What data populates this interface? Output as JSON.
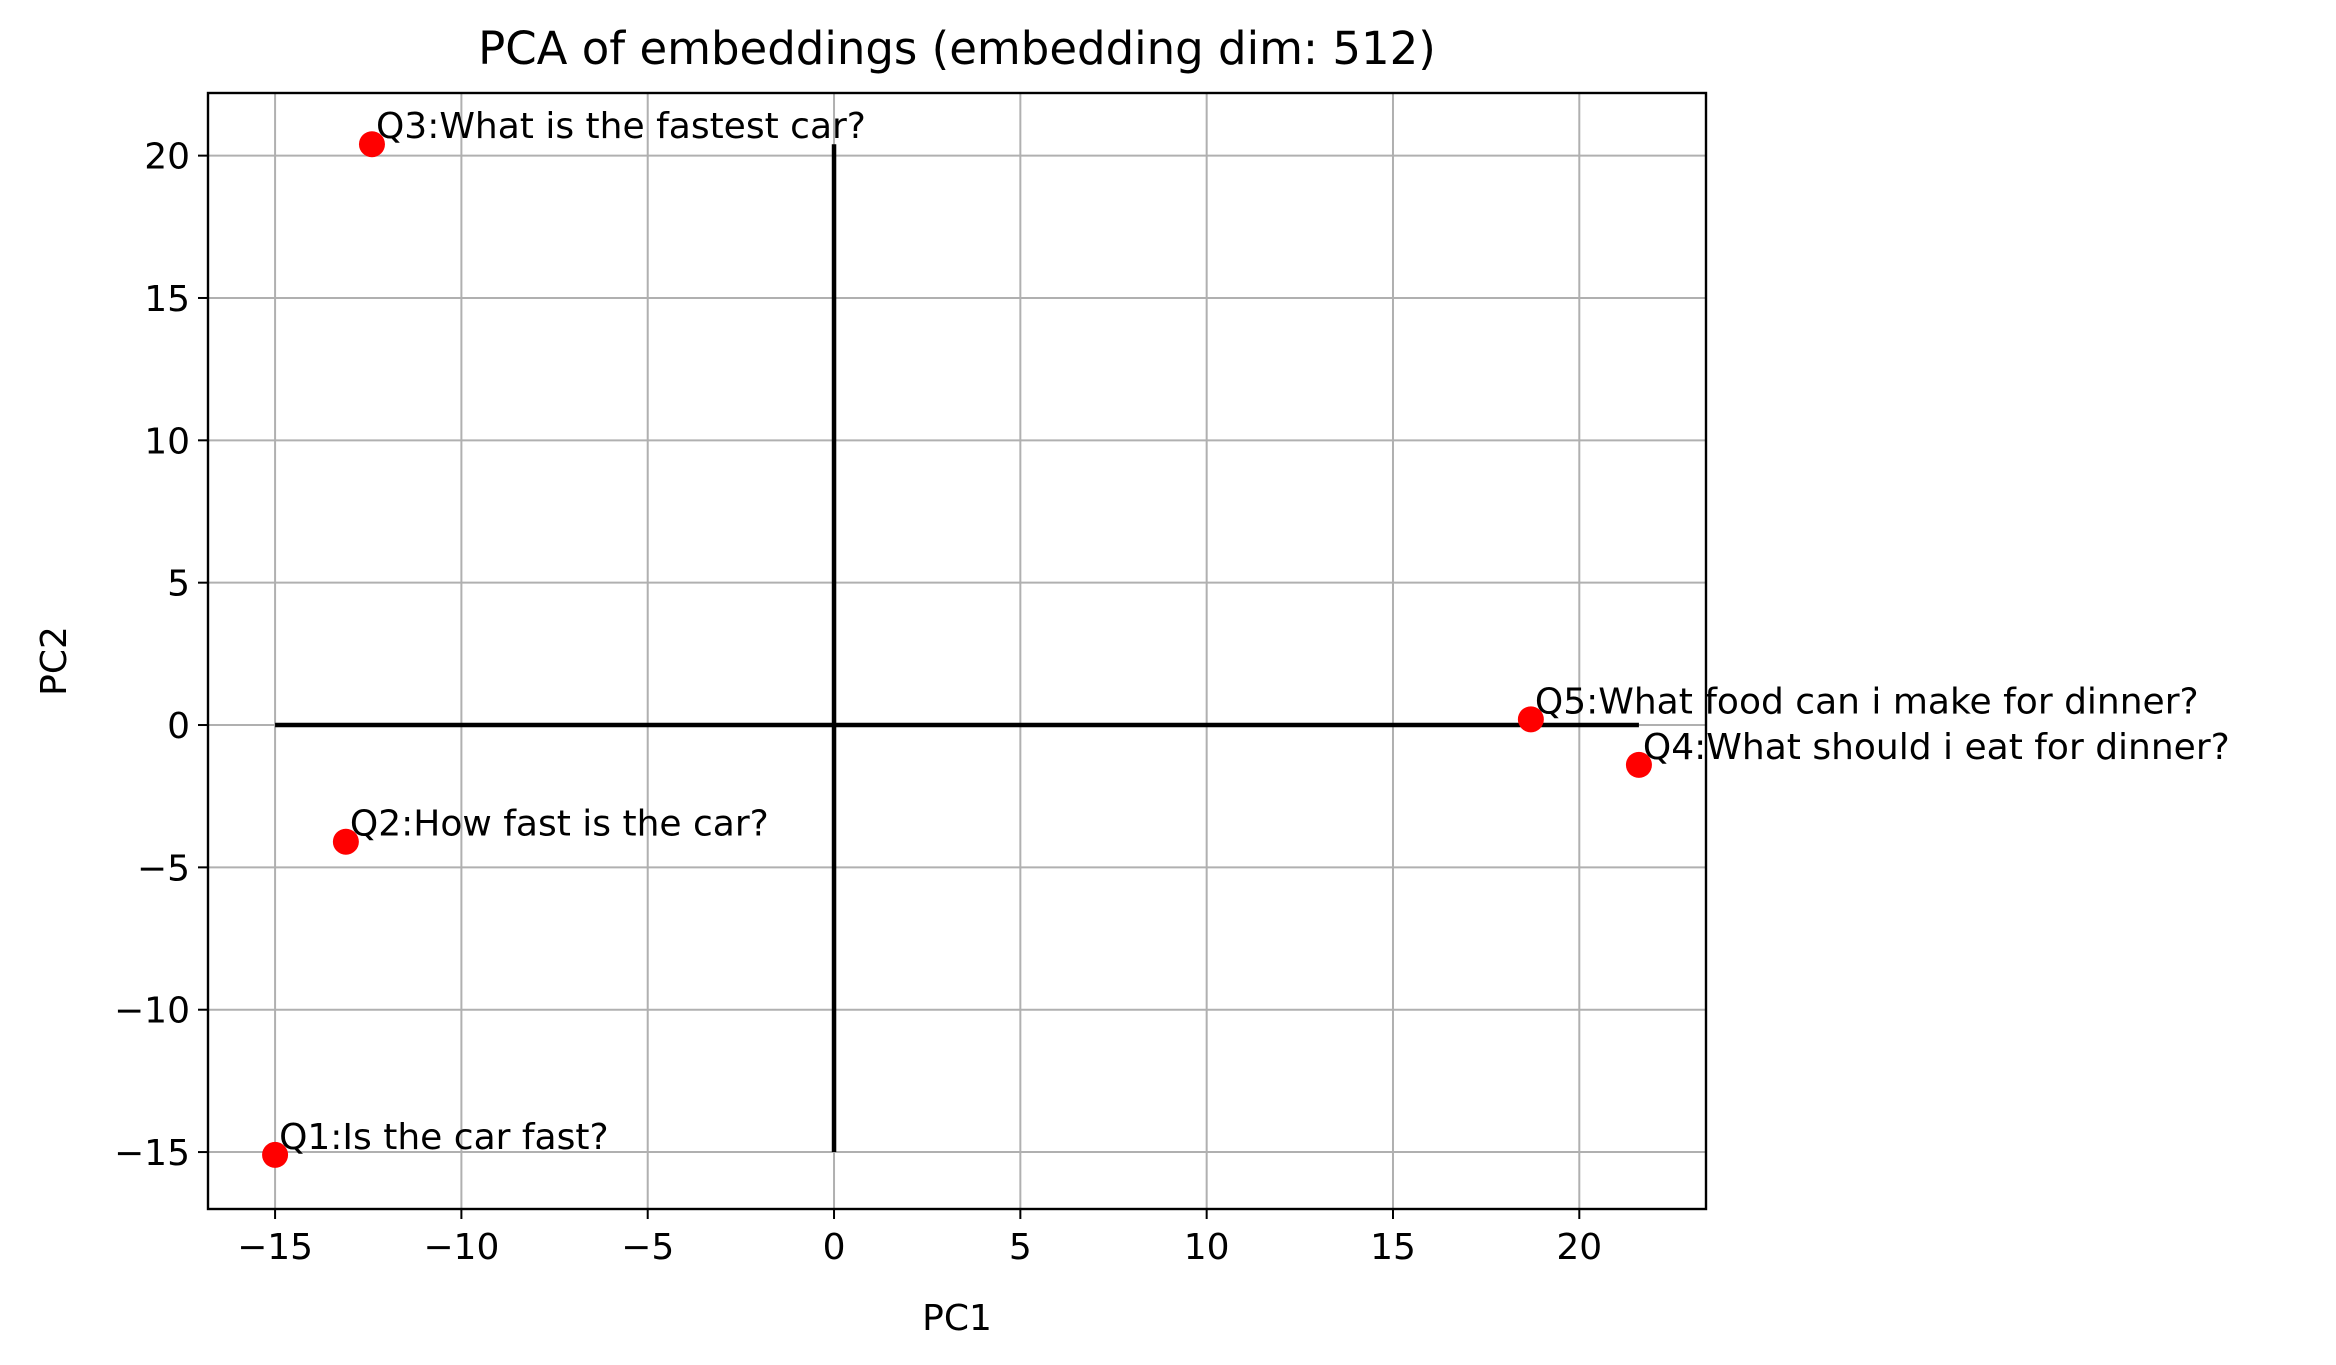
{
  "chart_data": {
    "type": "scatter",
    "title": "PCA of embeddings (embedding dim: 512)",
    "xlabel": "PC1",
    "ylabel": "PC2",
    "xlim": [
      -16.8,
      23.4
    ],
    "ylim": [
      -17.0,
      22.2
    ],
    "xticks": [
      -15,
      -10,
      -5,
      0,
      5,
      10,
      15,
      20
    ],
    "yticks": [
      -15,
      -10,
      -5,
      0,
      5,
      10,
      15,
      20
    ],
    "xtick_labels": [
      "−15",
      "−10",
      "−5",
      "0",
      "5",
      "10",
      "15",
      "20"
    ],
    "ytick_labels": [
      "−15",
      "−10",
      "−5",
      "0",
      "5",
      "10",
      "15",
      "20"
    ],
    "grid": true,
    "point_color": "#ff0000",
    "reference_lines": {
      "horizontal": {
        "y": 0,
        "x_from": -15.0,
        "x_to": 21.6
      },
      "vertical": {
        "x": 0,
        "y_from": -15.0,
        "y_to": 20.4
      }
    },
    "points": [
      {
        "label": "Q1:Is the car fast?",
        "x": -15.0,
        "y": -15.1
      },
      {
        "label": "Q2:How fast is the car?",
        "x": -13.1,
        "y": -4.1
      },
      {
        "label": "Q3:What is the fastest car?",
        "x": -12.4,
        "y": 20.4
      },
      {
        "label": "Q4:What should i eat for dinner?",
        "x": 21.6,
        "y": -1.4
      },
      {
        "label": "Q5:What food can i make for dinner?",
        "x": 18.7,
        "y": 0.2
      }
    ]
  }
}
